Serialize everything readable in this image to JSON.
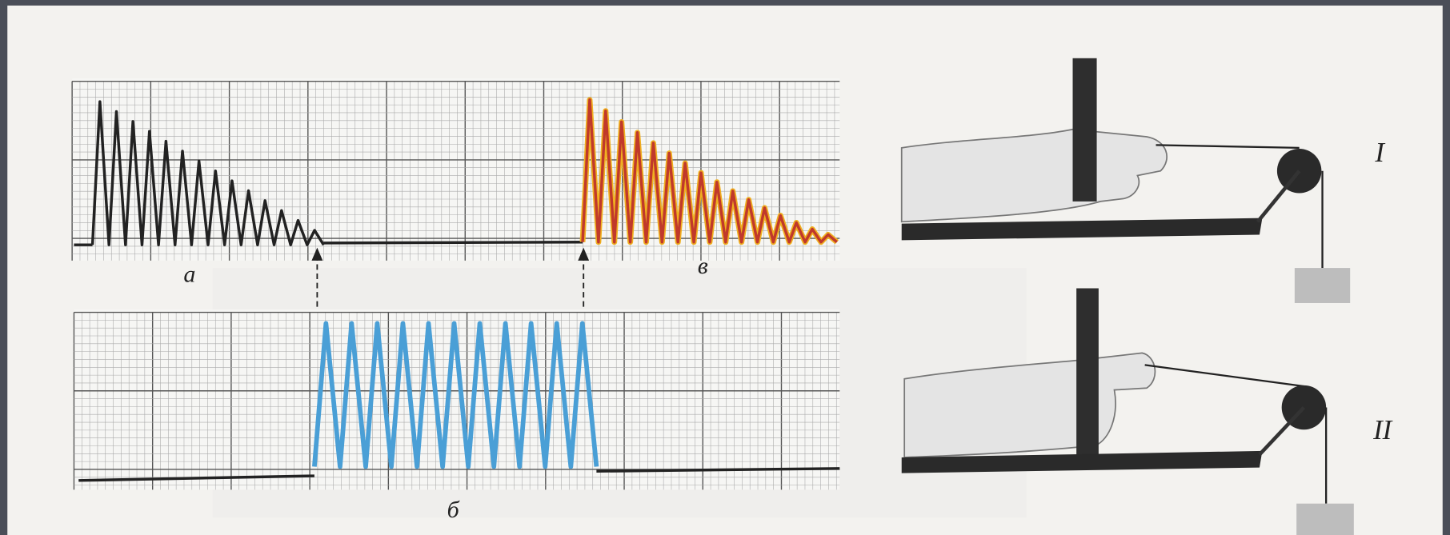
{
  "trace_labels": {
    "top_left": "а",
    "top_right": "в",
    "bottom": "б"
  },
  "setup_labels": [
    "I",
    "II"
  ]
}
